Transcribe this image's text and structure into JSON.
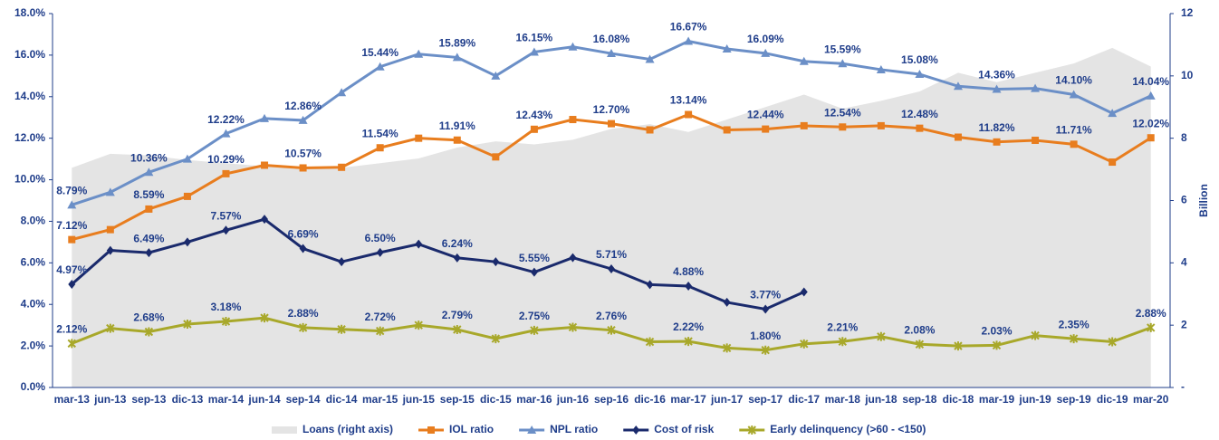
{
  "chart_data": {
    "type": "combo",
    "categories": [
      "mar-13",
      "jun-13",
      "sep-13",
      "dic-13",
      "mar-14",
      "jun-14",
      "sep-14",
      "dic-14",
      "mar-15",
      "jun-15",
      "sep-15",
      "dic-15",
      "mar-16",
      "jun-16",
      "sep-16",
      "dic-16",
      "mar-17",
      "jun-17",
      "sep-17",
      "dic-17",
      "mar-18",
      "jun-18",
      "sep-18",
      "dic-18",
      "mar-19",
      "jun-19",
      "sep-19",
      "dic-19",
      "mar-20"
    ],
    "ylim": [
      0,
      18
    ],
    "yticks": [
      {
        "value": 0,
        "label": "0.0%"
      },
      {
        "value": 2,
        "label": "2.0%"
      },
      {
        "value": 4,
        "label": "4.0%"
      },
      {
        "value": 6,
        "label": "6.0%"
      },
      {
        "value": 8,
        "label": "8.0%"
      },
      {
        "value": 10,
        "label": "10.0%"
      },
      {
        "value": 12,
        "label": "12.0%"
      },
      {
        "value": 14,
        "label": "14.0%"
      },
      {
        "value": 16,
        "label": "16.0%"
      },
      {
        "value": 18,
        "label": "18.0%"
      }
    ],
    "y2lim": [
      0,
      12
    ],
    "y2ticks": [
      {
        "value": 0,
        "label": "-"
      },
      2,
      4,
      6,
      8,
      10,
      12
    ],
    "y2_label": "Billion",
    "series": [
      {
        "name": "Loans (right axis)",
        "type": "area",
        "axis": "y2",
        "color": "#e4e4e4",
        "values": [
          7.05,
          7.5,
          7.45,
          7.3,
          7.2,
          7.1,
          7.0,
          7.05,
          7.2,
          7.35,
          7.7,
          7.9,
          7.8,
          7.95,
          8.3,
          8.45,
          8.2,
          8.6,
          9.0,
          9.4,
          8.95,
          9.2,
          9.5,
          10.1,
          9.8,
          10.1,
          10.4,
          10.9,
          10.3
        ]
      },
      {
        "name": "IOL ratio",
        "type": "line",
        "marker": "square",
        "color": "#e87d1e",
        "values": [
          7.12,
          7.6,
          8.59,
          9.2,
          10.29,
          10.7,
          10.57,
          10.6,
          11.54,
          12.0,
          11.91,
          11.1,
          12.43,
          12.9,
          12.7,
          12.4,
          13.14,
          12.4,
          12.44,
          12.6,
          12.54,
          12.6,
          12.48,
          12.05,
          11.82,
          11.9,
          11.71,
          10.85,
          12.02
        ],
        "value_labels": [
          "7.12%",
          null,
          "8.59%",
          null,
          "10.29%",
          null,
          "10.57%",
          null,
          "11.54%",
          null,
          "11.91%",
          null,
          "12.43%",
          null,
          "12.70%",
          null,
          "13.14%",
          null,
          "12.44%",
          null,
          "12.54%",
          null,
          "12.48%",
          null,
          "11.82%",
          null,
          "11.71%",
          null,
          "12.02%"
        ]
      },
      {
        "name": "NPL ratio",
        "type": "line",
        "marker": "triangle",
        "color": "#6b8fc7",
        "values": [
          8.79,
          9.4,
          10.36,
          11.0,
          12.22,
          12.95,
          12.86,
          14.2,
          15.44,
          16.05,
          15.89,
          15.0,
          16.15,
          16.4,
          16.08,
          15.8,
          16.67,
          16.3,
          16.09,
          15.7,
          15.59,
          15.3,
          15.08,
          14.5,
          14.36,
          14.4,
          14.1,
          13.2,
          14.04
        ],
        "value_labels": [
          "8.79%",
          null,
          "10.36%",
          null,
          "12.22%",
          null,
          "12.86%",
          null,
          "15.44%",
          null,
          "15.89%",
          null,
          "16.15%",
          null,
          "16.08%",
          null,
          "16.67%",
          null,
          "16.09%",
          null,
          "15.59%",
          null,
          "15.08%",
          null,
          "14.36%",
          null,
          "14.10%",
          null,
          "14.04%"
        ]
      },
      {
        "name": "Cost of risk",
        "type": "line",
        "marker": "diamond",
        "color": "#1a2a6c",
        "values": [
          4.97,
          6.6,
          6.49,
          7.0,
          7.57,
          8.1,
          6.69,
          6.05,
          6.5,
          6.9,
          6.24,
          6.05,
          5.55,
          6.25,
          5.71,
          4.95,
          4.88,
          4.1,
          3.77,
          4.6,
          null,
          null,
          null,
          null,
          null,
          null,
          null,
          null,
          null
        ],
        "value_labels": [
          "4.97%",
          null,
          "6.49%",
          null,
          "7.57%",
          null,
          "6.69%",
          null,
          "6.50%",
          null,
          "6.24%",
          null,
          "5.55%",
          null,
          "5.71%",
          null,
          "4.88%",
          null,
          "3.77%",
          null,
          null,
          null,
          null,
          null,
          null,
          null,
          null,
          null,
          null
        ]
      },
      {
        "name": "Early delinquency (>60 - <150)",
        "type": "line",
        "marker": "star",
        "color": "#a8a82a",
        "values": [
          2.12,
          2.85,
          2.68,
          3.05,
          3.18,
          3.35,
          2.88,
          2.8,
          2.72,
          3.0,
          2.79,
          2.35,
          2.75,
          2.9,
          2.76,
          2.2,
          2.22,
          1.9,
          1.8,
          2.1,
          2.21,
          2.45,
          2.08,
          2.0,
          2.03,
          2.5,
          2.35,
          2.2,
          2.88
        ],
        "value_labels": [
          "2.12%",
          null,
          "2.68%",
          null,
          "3.18%",
          null,
          "2.88%",
          null,
          "2.72%",
          null,
          "2.79%",
          null,
          "2.75%",
          null,
          "2.76%",
          null,
          "2.22%",
          null,
          "1.80%",
          null,
          "2.21%",
          null,
          "2.08%",
          null,
          "2.03%",
          null,
          "2.35%",
          null,
          "2.88%"
        ]
      }
    ],
    "legend": "bottom"
  }
}
